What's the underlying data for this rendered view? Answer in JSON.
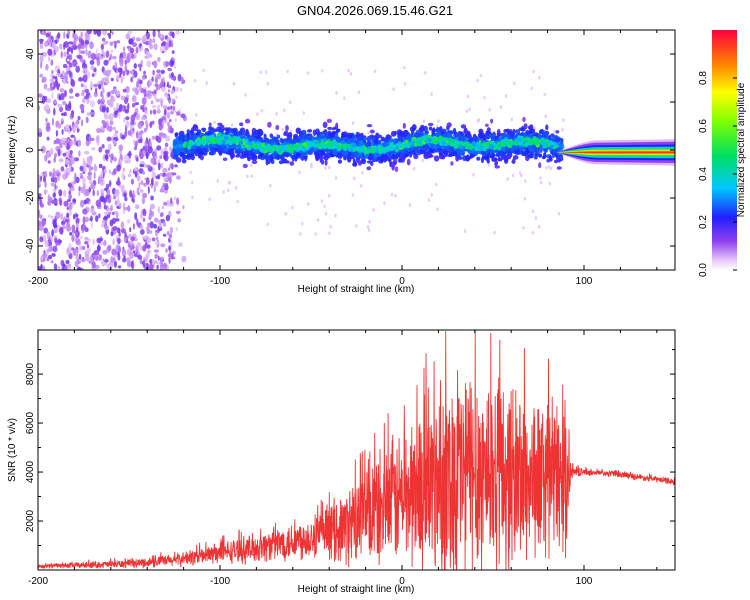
{
  "title": "GN04.2026.069.15.46.G21",
  "chart_data": [
    {
      "type": "heatmap",
      "xlabel": "Height of straight line (km)",
      "ylabel": "Frequency (Hz)",
      "xlim": [
        -200,
        150
      ],
      "ylim": [
        -50,
        50
      ],
      "xticks": [
        -200,
        -100,
        0,
        100
      ],
      "yticks": [
        -40,
        -20,
        0,
        20,
        40
      ],
      "colorbar": {
        "label": "Normalized spectral amplitude",
        "range": [
          0,
          1
        ],
        "ticks": [
          0.0,
          0.2,
          0.4,
          0.6,
          0.8
        ]
      },
      "regions": [
        {
          "x": [
            -200,
            -125
          ],
          "freq_spread": 50,
          "amplitude": 0.15,
          "description_level": "noise"
        },
        {
          "x": [
            -125,
            88
          ],
          "center_freq": 2,
          "freq_spread": 10,
          "amplitude": 0.45
        },
        {
          "x": [
            88,
            150
          ],
          "center_freq": -1,
          "freq_spread": 3,
          "amplitude": 0.95
        }
      ]
    },
    {
      "type": "line",
      "xlabel": "Height of straight line (km)",
      "ylabel": "SNR (10 * v/v)",
      "xlim": [
        -200,
        150
      ],
      "ylim": [
        0,
        9800
      ],
      "xticks": [
        -200,
        -100,
        0,
        100
      ],
      "yticks": [
        2000,
        4000,
        6000,
        8000
      ],
      "color": "#ee3333",
      "envelope": {
        "x": [
          -200,
          -150,
          -125,
          -100,
          -80,
          -60,
          -40,
          -30,
          -20,
          -10,
          0,
          10,
          20,
          30,
          40,
          50,
          60,
          70,
          80,
          90,
          93,
          100,
          120,
          150
        ],
        "mean": [
          150,
          250,
          400,
          700,
          900,
          1200,
          1500,
          1800,
          2200,
          2600,
          3000,
          3300,
          3600,
          3900,
          4100,
          4000,
          3900,
          3800,
          3700,
          3700,
          4000,
          4000,
          3900,
          3600
        ],
        "amplitude": [
          100,
          200,
          300,
          500,
          700,
          900,
          1200,
          1800,
          2500,
          2800,
          3200,
          3800,
          4500,
          5200,
          5200,
          4800,
          4500,
          4000,
          3700,
          3500,
          300,
          150,
          150,
          150
        ]
      }
    }
  ]
}
